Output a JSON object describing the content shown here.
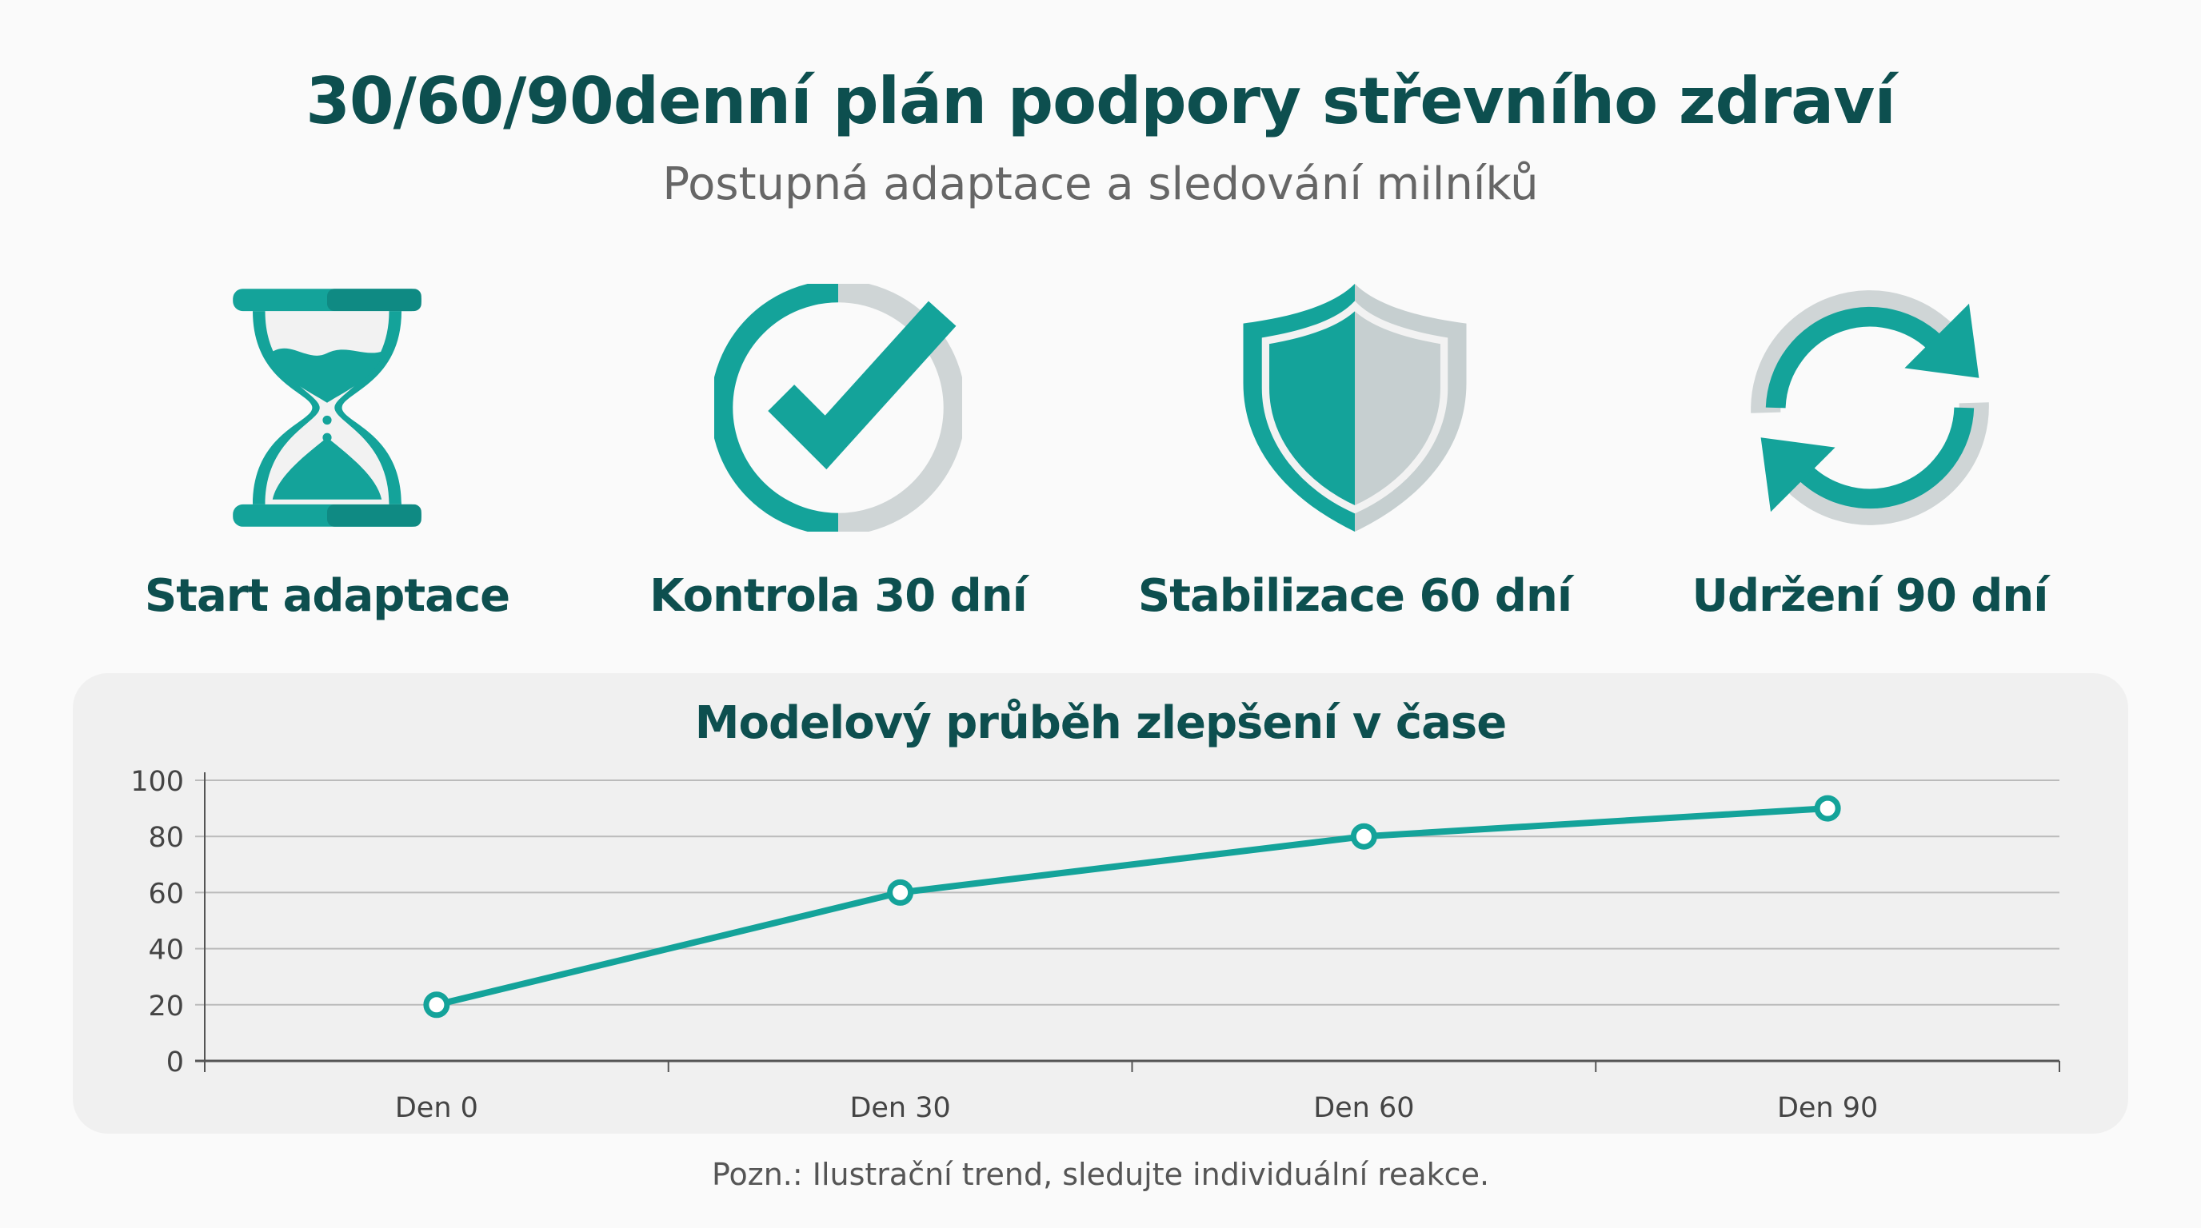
{
  "header": {
    "title": "30/60/90denní plán podpory střevního zdraví",
    "subtitle": "Postupná adaptace a sledování milníků"
  },
  "steps": [
    {
      "label": "Start adaptace",
      "icon": "hourglass-icon"
    },
    {
      "label": "Kontrola 30 dní",
      "icon": "check-circle-icon"
    },
    {
      "label": "Stabilizace 60 dní",
      "icon": "shield-icon"
    },
    {
      "label": "Udržení 90 dní",
      "icon": "refresh-cycle-icon"
    }
  ],
  "colors": {
    "accent": "#14a39a",
    "title": "#0d4f4f",
    "gray": "#c9d0d2"
  },
  "chart_data": {
    "type": "line",
    "title": "Modelový průběh zlepšení v čase",
    "categories": [
      "Den 0",
      "Den 30",
      "Den 60",
      "Den 90"
    ],
    "values": [
      20,
      60,
      80,
      90
    ],
    "ylim": [
      0,
      100
    ],
    "yticks": [
      0,
      20,
      40,
      60,
      80,
      100
    ],
    "grid": true,
    "xlabel": "",
    "ylabel": ""
  },
  "footnote": "Pozn.: Ilustrační trend, sledujte individuální reakce."
}
